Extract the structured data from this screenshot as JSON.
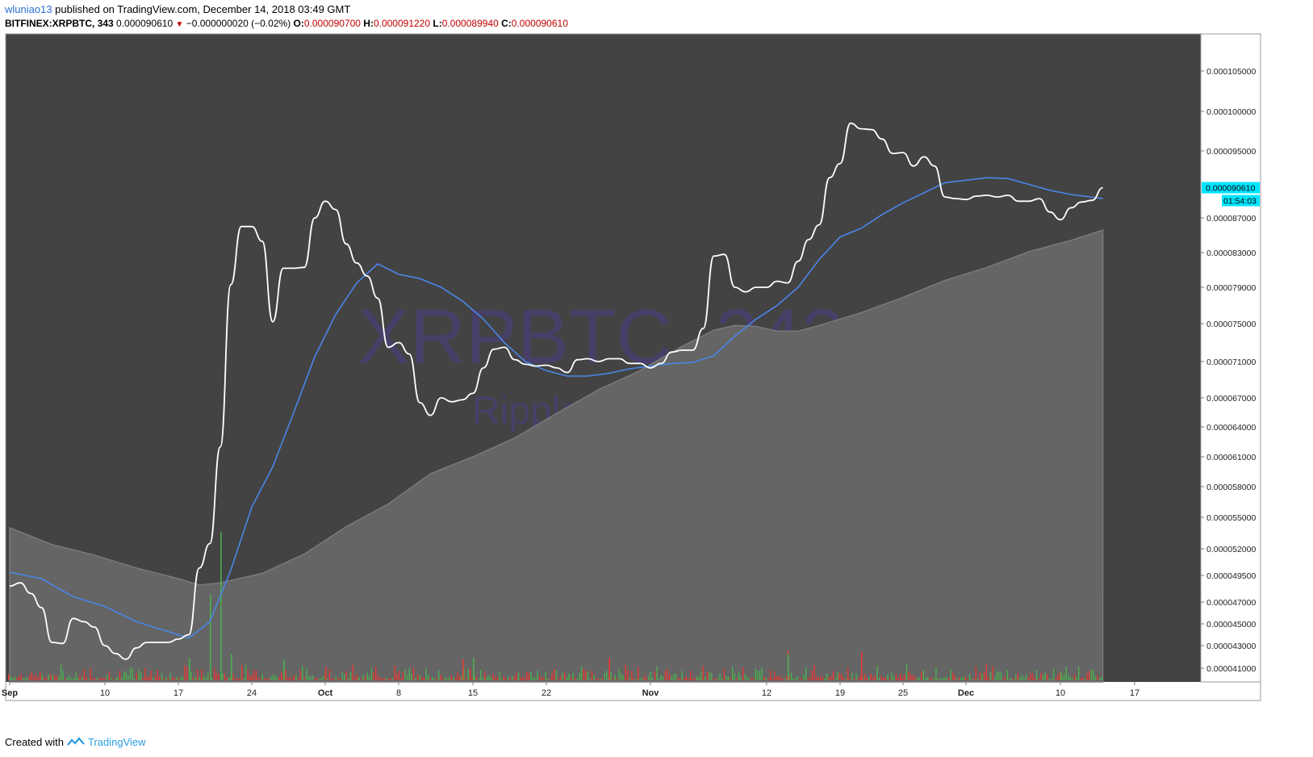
{
  "header": {
    "author": "wluniao13",
    "published_text": "published on TradingView.com, December 14, 2018 03:49 GMT",
    "symbol": "BITFINEX:XRPBTC, 343",
    "last": "0.000090610",
    "change": "−0.000000020 (−0.02%)",
    "o_label": "O:",
    "o_value": "0.000090700",
    "h_label": "H:",
    "h_value": "0.000091220",
    "l_label": "L:",
    "l_value": "0.000089940",
    "c_label": "C:",
    "c_value": "0.000090610"
  },
  "footer": {
    "created": "Created with",
    "brand": "TradingView"
  },
  "colors": {
    "background": "#434343",
    "price_line": "#ffffff",
    "ma_line": "#4a86e8",
    "area_fill": "#656565",
    "area_line": "#7a7a7a",
    "volume_up": "#4caf50",
    "volume_down": "#e53935",
    "price_tag": "#00e5ff",
    "watermark": "#4a3f73"
  },
  "chart_data": {
    "type": "line",
    "watermark_symbol": "XRPBTC, 343",
    "watermark_name": "Ripple / Bitcoin",
    "price_tag": "0.000090610",
    "countdown": "01:54:03",
    "x_ticks": [
      {
        "label": "Sep",
        "date": "2018-09-01"
      },
      {
        "label": "10",
        "date": "2018-09-10"
      },
      {
        "label": "17",
        "date": "2018-09-17"
      },
      {
        "label": "24",
        "date": "2018-09-24"
      },
      {
        "label": "Oct",
        "date": "2018-10-01"
      },
      {
        "label": "8",
        "date": "2018-10-08"
      },
      {
        "label": "15",
        "date": "2018-10-15"
      },
      {
        "label": "22",
        "date": "2018-10-22"
      },
      {
        "label": "Nov",
        "date": "2018-11-01"
      },
      {
        "label": "12",
        "date": "2018-11-12"
      },
      {
        "label": "19",
        "date": "2018-11-19"
      },
      {
        "label": "25",
        "date": "2018-11-25"
      },
      {
        "label": "Dec",
        "date": "2018-12-01"
      },
      {
        "label": "10",
        "date": "2018-12-10"
      },
      {
        "label": "17",
        "date": "2018-12-17"
      }
    ],
    "y_ticks": [
      "0.000105000",
      "0.000100000",
      "0.000095000",
      "0.000087000",
      "0.000083000",
      "0.000079000",
      "0.000075000",
      "0.000071000",
      "0.000067000",
      "0.000064000",
      "0.000061000",
      "0.000058000",
      "0.000055000",
      "0.000052000",
      "0.000049500",
      "0.000047000",
      "0.000045000",
      "0.000043000",
      "0.000041000"
    ],
    "y_tick_values": [
      0.000105,
      0.0001,
      9.5e-05,
      8.7e-05,
      8.3e-05,
      7.9e-05,
      7.5e-05,
      7.1e-05,
      6.7e-05,
      6.4e-05,
      6.1e-05,
      5.8e-05,
      5.5e-05,
      5.2e-05,
      4.95e-05,
      4.7e-05,
      4.5e-05,
      4.3e-05,
      4.1e-05
    ],
    "series": [
      {
        "kind": "price",
        "points": [
          [
            "2018-09-01",
            4.85e-05
          ],
          [
            "2018-09-02",
            4.88e-05
          ],
          [
            "2018-09-03",
            4.78e-05
          ],
          [
            "2018-09-04",
            4.65e-05
          ],
          [
            "2018-09-05",
            4.33e-05
          ],
          [
            "2018-09-06",
            4.32e-05
          ],
          [
            "2018-09-07",
            4.55e-05
          ],
          [
            "2018-09-08",
            4.52e-05
          ],
          [
            "2018-09-09",
            4.47e-05
          ],
          [
            "2018-09-10",
            4.3e-05
          ],
          [
            "2018-09-11",
            4.23e-05
          ],
          [
            "2018-09-12",
            4.18e-05
          ],
          [
            "2018-09-13",
            4.28e-05
          ],
          [
            "2018-09-14",
            4.33e-05
          ],
          [
            "2018-09-15",
            4.33e-05
          ],
          [
            "2018-09-16",
            4.33e-05
          ],
          [
            "2018-09-17",
            4.36e-05
          ],
          [
            "2018-09-18",
            4.4e-05
          ],
          [
            "2018-09-19",
            5.02e-05
          ],
          [
            "2018-09-20",
            5.25e-05
          ],
          [
            "2018-09-21",
            6.2e-05
          ],
          [
            "2018-09-22",
            7.93e-05
          ],
          [
            "2018-09-23",
            8.6e-05
          ],
          [
            "2018-09-24",
            8.6e-05
          ],
          [
            "2018-09-25",
            8.43e-05
          ],
          [
            "2018-09-26",
            7.52e-05
          ],
          [
            "2018-09-27",
            8.12e-05
          ],
          [
            "2018-09-28",
            8.12e-05
          ],
          [
            "2018-09-29",
            8.13e-05
          ],
          [
            "2018-09-30",
            8.7e-05
          ],
          [
            "2018-10-01",
            8.9e-05
          ],
          [
            "2018-10-02",
            8.8e-05
          ],
          [
            "2018-10-03",
            8.4e-05
          ],
          [
            "2018-10-04",
            8.18e-05
          ],
          [
            "2018-10-05",
            8.03e-05
          ],
          [
            "2018-10-06",
            7.78e-05
          ],
          [
            "2018-10-07",
            7.25e-05
          ],
          [
            "2018-10-08",
            7.3e-05
          ],
          [
            "2018-10-09",
            7.18e-05
          ],
          [
            "2018-10-10",
            6.65e-05
          ],
          [
            "2018-10-11",
            6.52e-05
          ],
          [
            "2018-10-12",
            6.7e-05
          ],
          [
            "2018-10-13",
            6.66e-05
          ],
          [
            "2018-10-14",
            6.68e-05
          ],
          [
            "2018-10-15",
            6.75e-05
          ],
          [
            "2018-10-16",
            7.03e-05
          ],
          [
            "2018-10-17",
            7.23e-05
          ],
          [
            "2018-10-18",
            7.25e-05
          ],
          [
            "2018-10-19",
            7.12e-05
          ],
          [
            "2018-10-20",
            7.07e-05
          ],
          [
            "2018-10-21",
            7.05e-05
          ],
          [
            "2018-10-22",
            7.06e-05
          ],
          [
            "2018-10-23",
            7.03e-05
          ],
          [
            "2018-10-24",
            6.98e-05
          ],
          [
            "2018-10-25",
            7.12e-05
          ],
          [
            "2018-10-26",
            7.13e-05
          ],
          [
            "2018-10-27",
            7.1e-05
          ],
          [
            "2018-10-28",
            7.13e-05
          ],
          [
            "2018-10-29",
            7.13e-05
          ],
          [
            "2018-10-30",
            7.08e-05
          ],
          [
            "2018-10-31",
            7.08e-05
          ],
          [
            "2018-11-01",
            7.03e-05
          ],
          [
            "2018-11-02",
            7.08e-05
          ],
          [
            "2018-11-03",
            7.2e-05
          ],
          [
            "2018-11-04",
            7.22e-05
          ],
          [
            "2018-11-05",
            7.22e-05
          ],
          [
            "2018-11-06",
            7.45e-05
          ],
          [
            "2018-11-07",
            8.26e-05
          ],
          [
            "2018-11-08",
            8.28e-05
          ],
          [
            "2018-11-09",
            7.9e-05
          ],
          [
            "2018-11-10",
            7.85e-05
          ],
          [
            "2018-11-11",
            7.9e-05
          ],
          [
            "2018-11-12",
            7.9e-05
          ],
          [
            "2018-11-13",
            7.97e-05
          ],
          [
            "2018-11-14",
            7.95e-05
          ],
          [
            "2018-11-15",
            8.2e-05
          ],
          [
            "2018-11-16",
            8.45e-05
          ],
          [
            "2018-11-17",
            8.62e-05
          ],
          [
            "2018-11-18",
            9.18e-05
          ],
          [
            "2018-11-19",
            9.35e-05
          ],
          [
            "2018-11-20",
            9.85e-05
          ],
          [
            "2018-11-21",
            9.78e-05
          ],
          [
            "2018-11-22",
            9.77e-05
          ],
          [
            "2018-11-23",
            9.65e-05
          ],
          [
            "2018-11-24",
            9.47e-05
          ],
          [
            "2018-11-25",
            9.48e-05
          ],
          [
            "2018-11-26",
            9.32e-05
          ],
          [
            "2018-11-27",
            9.43e-05
          ],
          [
            "2018-11-28",
            9.32e-05
          ],
          [
            "2018-11-29",
            8.95e-05
          ],
          [
            "2018-11-30",
            8.93e-05
          ],
          [
            "2018-12-01",
            8.92e-05
          ],
          [
            "2018-12-02",
            8.96e-05
          ],
          [
            "2018-12-03",
            8.97e-05
          ],
          [
            "2018-12-04",
            8.95e-05
          ],
          [
            "2018-12-05",
            8.97e-05
          ],
          [
            "2018-12-06",
            8.9e-05
          ],
          [
            "2018-12-07",
            8.9e-05
          ],
          [
            "2018-12-08",
            8.93e-05
          ],
          [
            "2018-12-09",
            8.77e-05
          ],
          [
            "2018-12-10",
            8.68e-05
          ],
          [
            "2018-12-11",
            8.82e-05
          ],
          [
            "2018-12-12",
            8.89e-05
          ],
          [
            "2018-12-13",
            8.91e-05
          ],
          [
            "2018-12-14",
            9.06e-05
          ]
        ]
      },
      {
        "kind": "moving_average",
        "points": [
          [
            "2018-09-01",
            4.98e-05
          ],
          [
            "2018-09-04",
            4.92e-05
          ],
          [
            "2018-09-07",
            4.75e-05
          ],
          [
            "2018-09-10",
            4.66e-05
          ],
          [
            "2018-09-13",
            4.52e-05
          ],
          [
            "2018-09-16",
            4.43e-05
          ],
          [
            "2018-09-18",
            4.37e-05
          ],
          [
            "2018-09-20",
            4.52e-05
          ],
          [
            "2018-09-22",
            5e-05
          ],
          [
            "2018-09-24",
            5.6e-05
          ],
          [
            "2018-09-26",
            6e-05
          ],
          [
            "2018-09-28",
            6.55e-05
          ],
          [
            "2018-09-30",
            7.15e-05
          ],
          [
            "2018-10-02",
            7.6e-05
          ],
          [
            "2018-10-04",
            7.95e-05
          ],
          [
            "2018-10-06",
            8.17e-05
          ],
          [
            "2018-10-08",
            8.05e-05
          ],
          [
            "2018-10-10",
            8e-05
          ],
          [
            "2018-10-12",
            7.9e-05
          ],
          [
            "2018-10-14",
            7.75e-05
          ],
          [
            "2018-10-16",
            7.55e-05
          ],
          [
            "2018-10-18",
            7.3e-05
          ],
          [
            "2018-10-20",
            7.1e-05
          ],
          [
            "2018-10-22",
            7e-05
          ],
          [
            "2018-10-24",
            6.94e-05
          ],
          [
            "2018-10-26",
            6.94e-05
          ],
          [
            "2018-10-28",
            6.97e-05
          ],
          [
            "2018-10-30",
            7.02e-05
          ],
          [
            "2018-11-01",
            7.05e-05
          ],
          [
            "2018-11-03",
            7.08e-05
          ],
          [
            "2018-11-05",
            7.09e-05
          ],
          [
            "2018-11-07",
            7.16e-05
          ],
          [
            "2018-11-09",
            7.37e-05
          ],
          [
            "2018-11-11",
            7.55e-05
          ],
          [
            "2018-11-13",
            7.7e-05
          ],
          [
            "2018-11-15",
            7.9e-05
          ],
          [
            "2018-11-17",
            8.22e-05
          ],
          [
            "2018-11-19",
            8.48e-05
          ],
          [
            "2018-11-21",
            8.58e-05
          ],
          [
            "2018-11-23",
            8.74e-05
          ],
          [
            "2018-11-25",
            8.88e-05
          ],
          [
            "2018-11-27",
            9e-05
          ],
          [
            "2018-11-29",
            9.12e-05
          ],
          [
            "2018-12-01",
            9.15e-05
          ],
          [
            "2018-12-03",
            9.18e-05
          ],
          [
            "2018-12-05",
            9.17e-05
          ],
          [
            "2018-12-07",
            9.1e-05
          ],
          [
            "2018-12-09",
            9.03e-05
          ],
          [
            "2018-12-11",
            8.98e-05
          ],
          [
            "2018-12-14",
            8.93e-05
          ]
        ]
      },
      {
        "kind": "area",
        "points": [
          [
            "2018-09-01",
            5.4e-05
          ],
          [
            "2018-09-05",
            5.24e-05
          ],
          [
            "2018-09-09",
            5.14e-05
          ],
          [
            "2018-09-13",
            5.02e-05
          ],
          [
            "2018-09-17",
            4.92e-05
          ],
          [
            "2018-09-19",
            4.86e-05
          ],
          [
            "2018-09-21",
            4.88e-05
          ],
          [
            "2018-09-25",
            4.97e-05
          ],
          [
            "2018-09-29",
            5.15e-05
          ],
          [
            "2018-10-03",
            5.41e-05
          ],
          [
            "2018-10-07",
            5.63e-05
          ],
          [
            "2018-10-11",
            5.93e-05
          ],
          [
            "2018-10-15",
            6.1e-05
          ],
          [
            "2018-10-19",
            6.29e-05
          ],
          [
            "2018-10-23",
            6.54e-05
          ],
          [
            "2018-10-27",
            6.79e-05
          ],
          [
            "2018-10-31",
            7e-05
          ],
          [
            "2018-11-04",
            7.26e-05
          ],
          [
            "2018-11-07",
            7.43e-05
          ],
          [
            "2018-11-09",
            7.48e-05
          ],
          [
            "2018-11-11",
            7.47e-05
          ],
          [
            "2018-11-13",
            7.42e-05
          ],
          [
            "2018-11-15",
            7.42e-05
          ],
          [
            "2018-11-17",
            7.48e-05
          ],
          [
            "2018-11-21",
            7.62e-05
          ],
          [
            "2018-11-25",
            7.79e-05
          ],
          [
            "2018-11-29",
            7.98e-05
          ],
          [
            "2018-12-03",
            8.13e-05
          ],
          [
            "2018-12-07",
            8.31e-05
          ],
          [
            "2018-12-11",
            8.44e-05
          ],
          [
            "2018-12-14",
            8.56e-05
          ]
        ]
      }
    ],
    "volume_spikes": [
      [
        "2018-09-18",
        "up",
        0.3
      ],
      [
        "2018-09-20",
        "up",
        0.55
      ],
      [
        "2018-09-21",
        "up",
        0.95
      ],
      [
        "2018-09-22",
        "up",
        0.35
      ],
      [
        "2018-09-23",
        "down",
        0.2
      ],
      [
        "2018-09-27",
        "up",
        0.28
      ],
      [
        "2018-10-01",
        "down",
        0.18
      ],
      [
        "2018-10-14",
        "down",
        0.28
      ],
      [
        "2018-10-15",
        "up",
        0.3
      ],
      [
        "2018-10-28",
        "down",
        0.3
      ],
      [
        "2018-11-14",
        "down",
        0.4
      ],
      [
        "2018-11-14",
        "up",
        0.35
      ],
      [
        "2018-11-21",
        "down",
        0.38
      ],
      [
        "2018-12-10",
        "up",
        0.12
      ]
    ],
    "ylim": [
      4e-05,
      0.0001085
    ],
    "grid": false,
    "legend": "none"
  }
}
